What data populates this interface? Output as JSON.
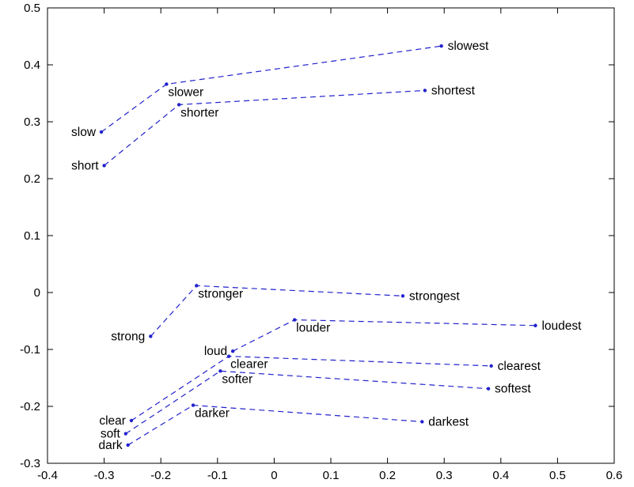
{
  "figure": {
    "background": "#ffffff",
    "axis_color": "#000000",
    "text_color": "#000000"
  },
  "chart_data": {
    "type": "scatter",
    "title": "",
    "xlabel": "",
    "ylabel": "",
    "xlim": [
      -0.4,
      0.6
    ],
    "ylim": [
      -0.3,
      0.5
    ],
    "grid": false,
    "legend": "none",
    "line_style": "dashed",
    "line_color": "#2222cc",
    "marker_color": "#2222cc",
    "label_color": "#000000",
    "xticks": [
      {
        "v": -0.4,
        "label": "-0.4"
      },
      {
        "v": -0.3,
        "label": "-0.3"
      },
      {
        "v": -0.2,
        "label": "-0.2"
      },
      {
        "v": -0.1,
        "label": "-0.1"
      },
      {
        "v": 0,
        "label": "0"
      },
      {
        "v": 0.1,
        "label": "0.1"
      },
      {
        "v": 0.2,
        "label": "0.2"
      },
      {
        "v": 0.3,
        "label": "0.3"
      },
      {
        "v": 0.4,
        "label": "0.4"
      },
      {
        "v": 0.5,
        "label": "0.5"
      },
      {
        "v": 0.6,
        "label": "0.6"
      }
    ],
    "yticks": [
      {
        "v": -0.3,
        "label": "-0.3"
      },
      {
        "v": -0.2,
        "label": "-0.2"
      },
      {
        "v": -0.1,
        "label": "-0.1"
      },
      {
        "v": 0,
        "label": "0"
      },
      {
        "v": 0.1,
        "label": "0.1"
      },
      {
        "v": 0.2,
        "label": "0.2"
      },
      {
        "v": 0.3,
        "label": "0.3"
      },
      {
        "v": 0.4,
        "label": "0.4"
      },
      {
        "v": 0.5,
        "label": "0.5"
      }
    ],
    "series": [
      {
        "name": "slow",
        "points": [
          {
            "word": "slow",
            "x": -0.305,
            "y": 0.282,
            "label_side": "left"
          },
          {
            "word": "slower",
            "x": -0.19,
            "y": 0.366,
            "label_side": "below"
          },
          {
            "word": "slowest",
            "x": 0.295,
            "y": 0.433,
            "label_side": "right"
          }
        ]
      },
      {
        "name": "short",
        "points": [
          {
            "word": "short",
            "x": -0.3,
            "y": 0.223,
            "label_side": "left"
          },
          {
            "word": "shorter",
            "x": -0.168,
            "y": 0.33,
            "label_side": "below"
          },
          {
            "word": "shortest",
            "x": 0.266,
            "y": 0.355,
            "label_side": "right"
          }
        ]
      },
      {
        "name": "strong",
        "points": [
          {
            "word": "strong",
            "x": -0.218,
            "y": -0.077,
            "label_side": "left"
          },
          {
            "word": "stronger",
            "x": -0.137,
            "y": 0.012,
            "label_side": "below"
          },
          {
            "word": "strongest",
            "x": 0.227,
            "y": -0.006,
            "label_side": "right"
          }
        ]
      },
      {
        "name": "loud",
        "points": [
          {
            "word": "loud",
            "x": -0.073,
            "y": -0.103,
            "label_side": "left"
          },
          {
            "word": "louder",
            "x": 0.036,
            "y": -0.048,
            "label_side": "below"
          },
          {
            "word": "loudest",
            "x": 0.461,
            "y": -0.058,
            "label_side": "right"
          }
        ]
      },
      {
        "name": "clear",
        "points": [
          {
            "word": "clear",
            "x": -0.252,
            "y": -0.225,
            "label_side": "left"
          },
          {
            "word": "clearer",
            "x": -0.08,
            "y": -0.112,
            "label_side": "below"
          },
          {
            "word": "clearest",
            "x": 0.383,
            "y": -0.129,
            "label_side": "right"
          }
        ]
      },
      {
        "name": "soft",
        "points": [
          {
            "word": "soft",
            "x": -0.262,
            "y": -0.248,
            "label_side": "left"
          },
          {
            "word": "softer",
            "x": -0.095,
            "y": -0.138,
            "label_side": "below"
          },
          {
            "word": "softest",
            "x": 0.378,
            "y": -0.169,
            "label_side": "right"
          }
        ]
      },
      {
        "name": "dark",
        "points": [
          {
            "word": "dark",
            "x": -0.258,
            "y": -0.268,
            "label_side": "left"
          },
          {
            "word": "darker",
            "x": -0.143,
            "y": -0.198,
            "label_side": "below"
          },
          {
            "word": "darkest",
            "x": 0.261,
            "y": -0.227,
            "label_side": "right"
          }
        ]
      }
    ]
  }
}
